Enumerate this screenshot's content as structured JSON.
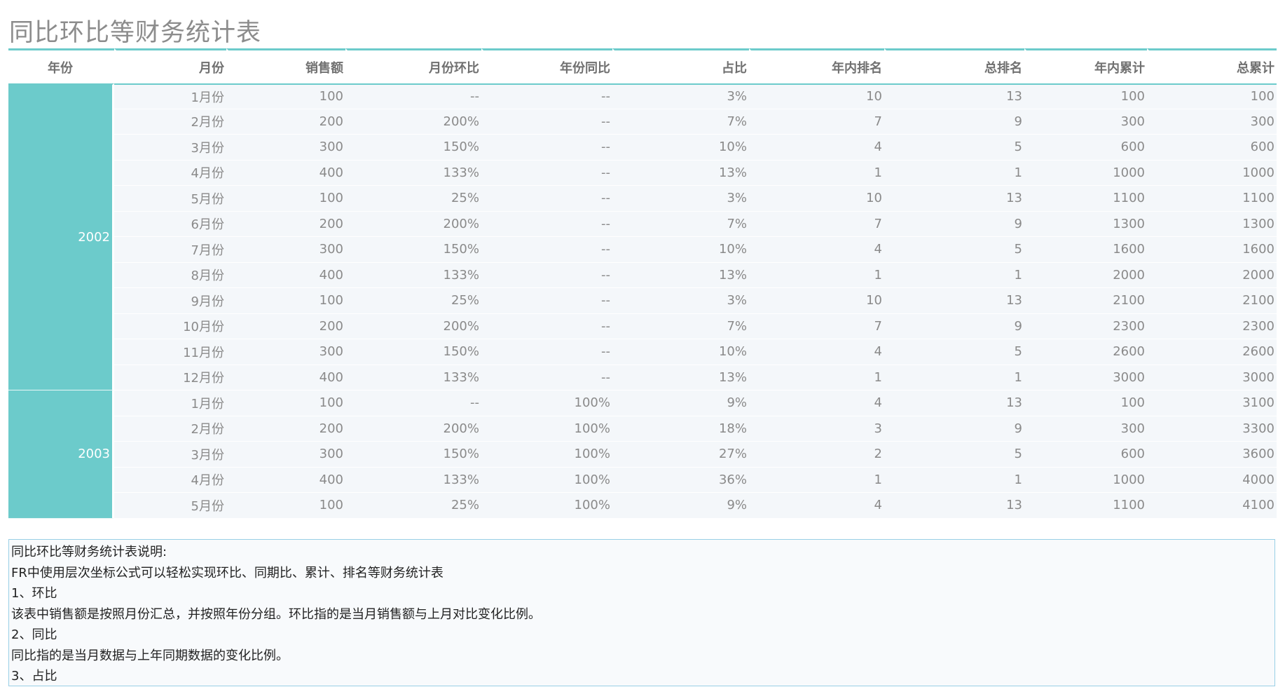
{
  "title": "同比环比等财务统计表",
  "colors": {
    "accent": "#6ccbcb",
    "row_bg": "#f4f7fa",
    "header_text": "#707070",
    "cell_text": "#8a8a8a",
    "title_text": "#8c8c8c",
    "note_border": "#99cfe6"
  },
  "table": {
    "columns": [
      "年份",
      "月份",
      "销售额",
      "月份环比",
      "年份同比",
      "占比",
      "年内排名",
      "总排名",
      "年内累计",
      "总累计"
    ],
    "groups": [
      {
        "year": "2002",
        "rows": [
          [
            "1月份",
            "100",
            "--",
            "--",
            "3%",
            "10",
            "13",
            "100",
            "100"
          ],
          [
            "2月份",
            "200",
            "200%",
            "--",
            "7%",
            "7",
            "9",
            "300",
            "300"
          ],
          [
            "3月份",
            "300",
            "150%",
            "--",
            "10%",
            "4",
            "5",
            "600",
            "600"
          ],
          [
            "4月份",
            "400",
            "133%",
            "--",
            "13%",
            "1",
            "1",
            "1000",
            "1000"
          ],
          [
            "5月份",
            "100",
            "25%",
            "--",
            "3%",
            "10",
            "13",
            "1100",
            "1100"
          ],
          [
            "6月份",
            "200",
            "200%",
            "--",
            "7%",
            "7",
            "9",
            "1300",
            "1300"
          ],
          [
            "7月份",
            "300",
            "150%",
            "--",
            "10%",
            "4",
            "5",
            "1600",
            "1600"
          ],
          [
            "8月份",
            "400",
            "133%",
            "--",
            "13%",
            "1",
            "1",
            "2000",
            "2000"
          ],
          [
            "9月份",
            "100",
            "25%",
            "--",
            "3%",
            "10",
            "13",
            "2100",
            "2100"
          ],
          [
            "10月份",
            "200",
            "200%",
            "--",
            "7%",
            "7",
            "9",
            "2300",
            "2300"
          ],
          [
            "11月份",
            "300",
            "150%",
            "--",
            "10%",
            "4",
            "5",
            "2600",
            "2600"
          ],
          [
            "12月份",
            "400",
            "133%",
            "--",
            "13%",
            "1",
            "1",
            "3000",
            "3000"
          ]
        ]
      },
      {
        "year": "2003",
        "rows": [
          [
            "1月份",
            "100",
            "--",
            "100%",
            "9%",
            "4",
            "13",
            "100",
            "3100"
          ],
          [
            "2月份",
            "200",
            "200%",
            "100%",
            "18%",
            "3",
            "9",
            "300",
            "3300"
          ],
          [
            "3月份",
            "300",
            "150%",
            "100%",
            "27%",
            "2",
            "5",
            "600",
            "3600"
          ],
          [
            "4月份",
            "400",
            "133%",
            "100%",
            "36%",
            "1",
            "1",
            "1000",
            "4000"
          ],
          [
            "5月份",
            "100",
            "25%",
            "100%",
            "9%",
            "4",
            "13",
            "1100",
            "4100"
          ]
        ]
      }
    ]
  },
  "note": {
    "lines": [
      "同比环比等财务统计表说明:",
      "FR中使用层次坐标公式可以轻松实现环比、同期比、累计、排名等财务统计表",
      "1、环比",
      "该表中销售额是按照月份汇总，并按照年份分组。环比指的是当月销售额与上月对比变化比例。",
      "2、同比",
      "同比指的是当月数据与上年同期数据的变化比例。",
      "3、占比"
    ]
  }
}
